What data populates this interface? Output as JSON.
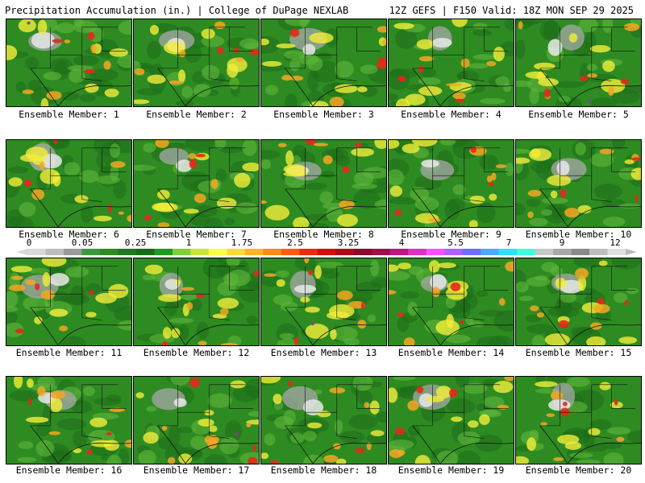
{
  "header": {
    "title": "Precipitation Accumulation (in.) | College of DuPage NEXLAB",
    "run_info": "12Z GEFS | F150 Valid: 18Z MON SEP 29 2025"
  },
  "members": [
    {
      "label": "Ensemble Member: 1"
    },
    {
      "label": "Ensemble Member: 2"
    },
    {
      "label": "Ensemble Member: 3"
    },
    {
      "label": "Ensemble Member: 4"
    },
    {
      "label": "Ensemble Member: 5"
    },
    {
      "label": "Ensemble Member: 6"
    },
    {
      "label": "Ensemble Member: 7"
    },
    {
      "label": "Ensemble Member: 8"
    },
    {
      "label": "Ensemble Member: 9"
    },
    {
      "label": "Ensemble Member: 10"
    },
    {
      "label": "Ensemble Member: 11"
    },
    {
      "label": "Ensemble Member: 12"
    },
    {
      "label": "Ensemble Member: 13"
    },
    {
      "label": "Ensemble Member: 14"
    },
    {
      "label": "Ensemble Member: 15"
    },
    {
      "label": "Ensemble Member: 16"
    },
    {
      "label": "Ensemble Member: 17"
    },
    {
      "label": "Ensemble Member: 18"
    },
    {
      "label": "Ensemble Member: 19"
    },
    {
      "label": "Ensemble Member: 20"
    }
  ],
  "colorbar": {
    "labels": [
      "0",
      "0.05",
      "0.25",
      "1",
      "1.75",
      "2.5",
      "3.25",
      "4",
      "5.5",
      "7",
      "9",
      "12"
    ],
    "colors": [
      "#d9d9d9",
      "#bdbdbd",
      "#9a9a9a",
      "#3c9a3c",
      "#2e8b22",
      "#1f7a1f",
      "#166b16",
      "#1e9a1e",
      "#7fcf3a",
      "#c8e63a",
      "#ffff4a",
      "#ffd83a",
      "#ffb32a",
      "#ff8c1a",
      "#ff5a10",
      "#ee2a10",
      "#d80e0e",
      "#b00a1a",
      "#8c0a2a",
      "#a0104a",
      "#c01680",
      "#e030c0",
      "#ff50ff",
      "#b060ff",
      "#6e6eff",
      "#50a8ff",
      "#30e0ff",
      "#40ffe0",
      "#c8c8c8",
      "#a8a8a8",
      "#8a8a8a",
      "#bdbdbd",
      "#e0e0e0"
    ]
  },
  "map_palette": {
    "green": "#2e8b22",
    "dark_green": "#1e6e18",
    "light_green": "#5fb83a",
    "yellow": "#f2ee3a",
    "orange": "#f5a623",
    "red": "#e5281b",
    "gray": "#a8a8a8",
    "white": "#e8e8e8",
    "purple": "#8a3aa8"
  }
}
